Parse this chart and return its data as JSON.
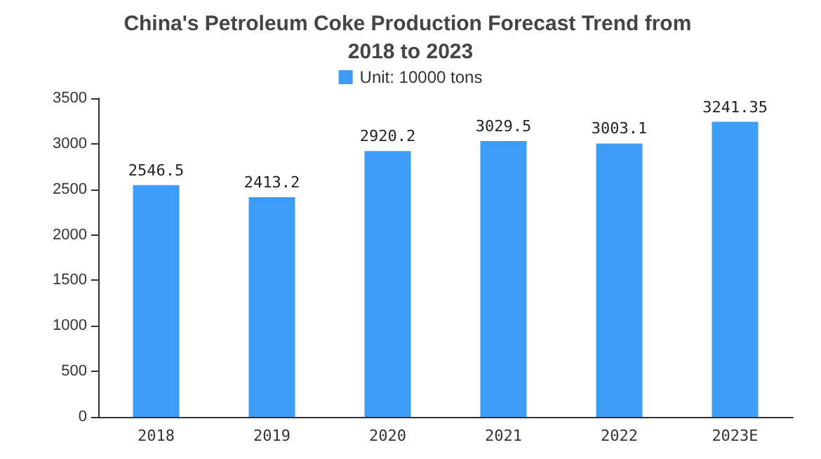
{
  "chart_data": {
    "type": "bar",
    "title": "China's Petroleum Coke Production Forecast Trend from 2018 to 2023",
    "categories": [
      "2018",
      "2019",
      "2020",
      "2021",
      "2022",
      "2023E"
    ],
    "series": [
      {
        "name": "Unit: 10000 tons",
        "color": "#3d9cf5",
        "values": [
          2546.5,
          2413.2,
          2920.2,
          3029.5,
          3003.1,
          3241.35
        ]
      }
    ],
    "ylim": [
      0,
      3500
    ],
    "yticks": [
      0,
      500,
      1000,
      1500,
      2000,
      2500,
      3000,
      3500
    ],
    "data_labels": true,
    "legend": "top"
  }
}
